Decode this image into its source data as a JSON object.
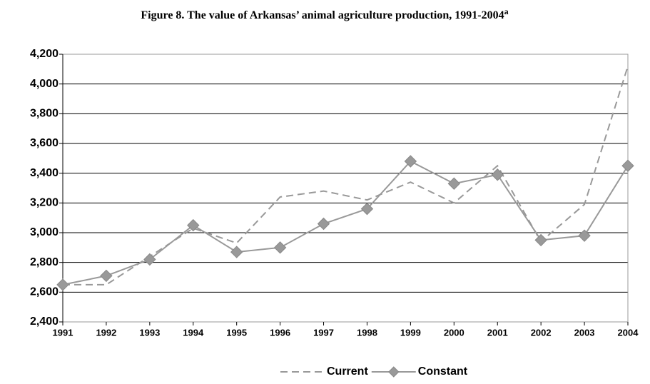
{
  "chart_data": {
    "type": "line",
    "title": "Figure 8. The value of Arkansas’ animal agriculture production, 1991-2004",
    "title_superscript": "a",
    "x": [
      1991,
      1992,
      1993,
      1994,
      1995,
      1996,
      1997,
      1998,
      1999,
      2000,
      2001,
      2002,
      2003,
      2004
    ],
    "xlim": [
      1991,
      2004
    ],
    "xticks": [
      1991,
      1992,
      1993,
      1994,
      1995,
      1996,
      1997,
      1998,
      1999,
      2000,
      2001,
      2002,
      2003,
      2004
    ],
    "ylim": [
      2400,
      4200
    ],
    "yticks": [
      {
        "value": 2400,
        "label": "2,400"
      },
      {
        "value": 2600,
        "label": "2,600"
      },
      {
        "value": 2800,
        "label": "2,800"
      },
      {
        "value": 3000,
        "label": "3,000"
      },
      {
        "value": 3200,
        "label": "3,200"
      },
      {
        "value": 3400,
        "label": "3,400"
      },
      {
        "value": 3600,
        "label": "3,600"
      },
      {
        "value": 3800,
        "label": "3,800"
      },
      {
        "value": 4000,
        "label": "4,000"
      },
      {
        "value": 4200,
        "label": "4,200"
      }
    ],
    "grid": true,
    "legend": "bottom",
    "series": [
      {
        "name": "Current",
        "color": "#999999",
        "line_style": "dashed",
        "marker": "none",
        "values": [
          2650,
          2650,
          2840,
          3030,
          2930,
          3240,
          3280,
          3220,
          3340,
          3200,
          3450,
          2940,
          3190,
          4120
        ]
      },
      {
        "name": "Constant",
        "color": "#999999",
        "line_style": "solid",
        "marker": "diamond",
        "values": [
          2650,
          2710,
          2820,
          3050,
          2870,
          2900,
          3060,
          3160,
          3480,
          3330,
          3390,
          2950,
          2980,
          3450
        ]
      }
    ]
  }
}
